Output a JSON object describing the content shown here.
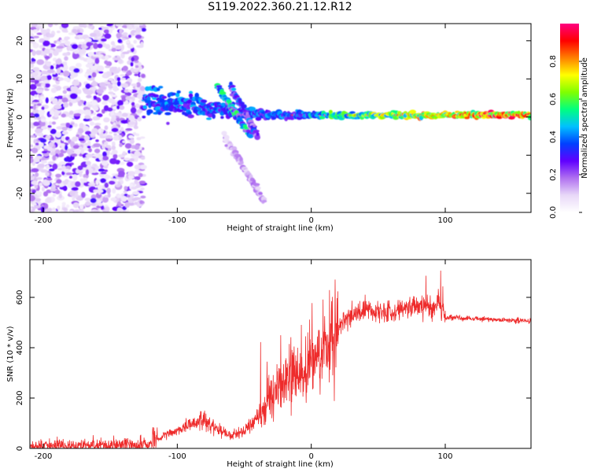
{
  "title": "S119.2022.360.21.12.R12",
  "chart_data": [
    {
      "type": "heatmap",
      "xlabel": "Height of straight line (km)",
      "ylabel": "Frequency (Hz)",
      "xlim": [
        -210,
        164
      ],
      "ylim": [
        -25,
        24.5
      ],
      "xticks": [
        -200,
        -100,
        0,
        100
      ],
      "yticks": [
        -20,
        -10,
        0,
        10,
        20
      ],
      "colorbar": {
        "label": "Normalized spectral amplitude",
        "range": [
          0.0,
          1.0
        ],
        "ticks": [
          "0.0",
          "0.2",
          "0.4",
          "0.6",
          "0.8"
        ],
        "colormap": [
          "#ffffff",
          "#e8d8f8",
          "#b070f0",
          "#6000ff",
          "#0040ff",
          "#00c0ff",
          "#00ff80",
          "#80ff00",
          "#ffff00",
          "#ff8000",
          "#ff0000",
          "#ff0080"
        ]
      },
      "features": [
        {
          "name": "noise",
          "x": [
            -210,
            -125
          ],
          "freq": [
            -25,
            24.5
          ],
          "amplitude": 0.25
        },
        {
          "name": "carrier",
          "x": [
            -125,
            164
          ],
          "freq": [
            0.0,
            1.0
          ],
          "amplitude": 0.6
        },
        {
          "name": "branch",
          "x": [
            -70,
            -45
          ],
          "freq": [
            8,
            -5
          ],
          "amplitude": 0.45
        },
        {
          "name": "branch",
          "x": [
            -60,
            -40
          ],
          "freq": [
            8,
            -5
          ],
          "amplitude": 0.35
        },
        {
          "name": "tail",
          "x": [
            -65,
            -35
          ],
          "freq": [
            -5,
            -22
          ],
          "amplitude": 0.15
        }
      ]
    },
    {
      "type": "line",
      "xlabel": "Height of straight line (km)",
      "ylabel": "SNR (10 * v/v)",
      "xlim": [
        -210,
        164
      ],
      "ylim": [
        0,
        750
      ],
      "xticks": [
        -200,
        -100,
        0,
        100
      ],
      "yticks": [
        0,
        200,
        400,
        600
      ],
      "color": "#ee2b2b",
      "x": [
        -210,
        -160,
        -125,
        -115,
        -110,
        -100,
        -90,
        -80,
        -70,
        -60,
        -50,
        -40,
        -30,
        -20,
        -10,
        -5,
        0,
        5,
        10,
        15,
        20,
        30,
        40,
        50,
        60,
        70,
        80,
        90,
        95,
        100,
        110,
        120,
        130,
        140,
        150,
        164
      ],
      "y": [
        10,
        12,
        15,
        30,
        50,
        70,
        100,
        110,
        80,
        50,
        70,
        120,
        200,
        260,
        300,
        250,
        350,
        380,
        400,
        440,
        480,
        530,
        550,
        545,
        540,
        560,
        570,
        560,
        590,
        520,
        520,
        515,
        515,
        510,
        510,
        505
      ]
    }
  ]
}
